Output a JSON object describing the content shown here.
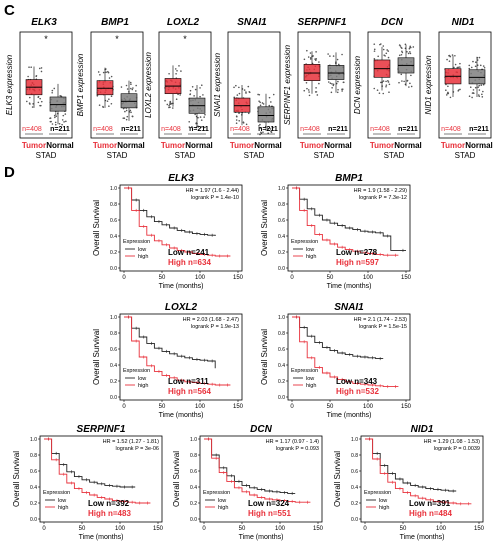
{
  "panels": {
    "c_letter": "C",
    "d_letter": "D"
  },
  "colors": {
    "tumor": "#e8313b",
    "normal": "#7f7f7f",
    "high": "#e8313b",
    "low": "#222222"
  },
  "boxplots": [
    {
      "gene": "ELK3",
      "ylabel": "ELK3 expression",
      "tumor_n": "n=408",
      "normal_n": "n=211",
      "tumor_label": "Tumor",
      "normal_label": "Normal",
      "group_label": "STAD"
    },
    {
      "gene": "BMP1",
      "ylabel": "BMP1 expression",
      "tumor_n": "n=408",
      "normal_n": "n=211",
      "tumor_label": "Tumor",
      "normal_label": "Normal",
      "group_label": "STAD"
    },
    {
      "gene": "LOXL2",
      "ylabel": "LOXL2 expression",
      "tumor_n": "n=408",
      "normal_n": "n=211",
      "tumor_label": "Tumor",
      "normal_label": "Normal",
      "group_label": "STAD"
    },
    {
      "gene": "SNAI1",
      "ylabel": "SNAI1 expression",
      "tumor_n": "n=408",
      "normal_n": "n=211",
      "tumor_label": "Tumor",
      "normal_label": "Normal",
      "group_label": "STAD"
    },
    {
      "gene": "SERPINF1",
      "ylabel": "SERPINF1 expression",
      "tumor_n": "n=408",
      "normal_n": "n=211",
      "tumor_label": "Tumor",
      "normal_label": "Normal",
      "group_label": "STAD"
    },
    {
      "gene": "DCN",
      "ylabel": "DCN expression",
      "tumor_n": "n=408",
      "normal_n": "n=211",
      "tumor_label": "Tumor",
      "normal_label": "Normal",
      "group_label": "STAD"
    },
    {
      "gene": "NID1",
      "ylabel": "NID1 expression",
      "tumor_n": "n=408",
      "normal_n": "n=211",
      "tumor_label": "Tumor",
      "normal_label": "Normal",
      "group_label": "STAD"
    }
  ],
  "chart_data": [
    {
      "type": "box",
      "title": "ELK3",
      "ylabel": "ELK3 expression",
      "categories": [
        "Tumor",
        "Normal"
      ],
      "median": [
        4.3,
        2.7
      ],
      "q1": [
        3.6,
        2.1
      ],
      "q3": [
        5.0,
        3.4
      ],
      "significant": true
    },
    {
      "type": "box",
      "title": "BMP1",
      "ylabel": "BMP1 expression",
      "categories": [
        "Tumor",
        "Normal"
      ],
      "median": [
        4.2,
        3.0
      ],
      "q1": [
        3.6,
        2.4
      ],
      "q3": [
        4.9,
        3.7
      ],
      "significant": true
    },
    {
      "type": "box",
      "title": "LOXL2",
      "ylabel": "LOXL2 expression",
      "categories": [
        "Tumor",
        "Normal"
      ],
      "median": [
        4.4,
        2.6
      ],
      "q1": [
        3.7,
        1.9
      ],
      "q3": [
        5.1,
        3.3
      ],
      "significant": true
    },
    {
      "type": "box",
      "title": "SNAI1",
      "ylabel": "SNAI1 expression",
      "categories": [
        "Tumor",
        "Normal"
      ],
      "median": [
        2.6,
        1.7
      ],
      "q1": [
        2.0,
        1.1
      ],
      "q3": [
        3.3,
        2.5
      ],
      "significant": false
    },
    {
      "type": "box",
      "title": "SERPINF1",
      "ylabel": "SERPINF1 expression",
      "categories": [
        "Tumor",
        "Normal"
      ],
      "median": [
        5.6,
        5.6
      ],
      "q1": [
        4.9,
        5.0
      ],
      "q3": [
        6.4,
        6.3
      ],
      "significant": false
    },
    {
      "type": "box",
      "title": "DCN",
      "ylabel": "DCN expression",
      "categories": [
        "Tumor",
        "Normal"
      ],
      "median": [
        6.0,
        6.3
      ],
      "q1": [
        5.2,
        5.6
      ],
      "q3": [
        6.8,
        7.0
      ],
      "significant": false
    },
    {
      "type": "box",
      "title": "NID1",
      "ylabel": "NID1 expression",
      "categories": [
        "Tumor",
        "Normal"
      ],
      "median": [
        5.3,
        5.2
      ],
      "q1": [
        4.6,
        4.6
      ],
      "q3": [
        6.0,
        5.9
      ],
      "significant": false
    },
    {
      "type": "line",
      "title": "ELK3",
      "hr": "HR = 1.97 (1.6 - 2.44)",
      "logrank": "logrank P = 1.4e-10",
      "xlabel": "Time (months)",
      "ylabel": "Overall Survival",
      "xticks": [
        0,
        50,
        100,
        150
      ],
      "yticks": [
        0.0,
        0.2,
        0.4,
        0.6,
        0.8,
        1.0
      ],
      "legend_title": "Expression",
      "legend_low": "low",
      "legend_high": "high",
      "low_n": "Low n=241",
      "high_n": "High n=634",
      "series": [
        {
          "name": "low",
          "x": [
            0,
            10,
            20,
            30,
            40,
            50,
            60,
            70,
            80,
            90,
            100,
            110,
            120
          ],
          "y": [
            1,
            0.85,
            0.72,
            0.64,
            0.58,
            0.54,
            0.5,
            0.47,
            0.45,
            0.43,
            0.42,
            0.41,
            0.4
          ]
        },
        {
          "name": "high",
          "x": [
            0,
            10,
            20,
            30,
            40,
            50,
            60,
            70,
            80,
            90,
            100,
            110,
            120,
            130,
            140
          ],
          "y": [
            1,
            0.72,
            0.52,
            0.41,
            0.34,
            0.29,
            0.25,
            0.22,
            0.2,
            0.18,
            0.17,
            0.16,
            0.15,
            0.15,
            0.15
          ]
        }
      ]
    },
    {
      "type": "line",
      "title": "BMP1",
      "hr": "HR = 1.9 (1.58 - 2.29)",
      "logrank": "logrank P = 7.3e-12",
      "xlabel": "Time (months)",
      "ylabel": "Overall Survival",
      "xticks": [
        0,
        50,
        100,
        150
      ],
      "yticks": [
        0.0,
        0.2,
        0.4,
        0.6,
        0.8,
        1.0
      ],
      "legend_title": "Expression",
      "legend_low": "low",
      "legend_high": "high",
      "low_n": "Low n=278",
      "high_n": "High n=597",
      "series": [
        {
          "name": "low",
          "x": [
            0,
            10,
            20,
            30,
            40,
            50,
            60,
            70,
            80,
            90,
            100,
            110,
            120,
            130,
            150
          ],
          "y": [
            1,
            0.86,
            0.74,
            0.66,
            0.6,
            0.56,
            0.53,
            0.5,
            0.48,
            0.46,
            0.45,
            0.44,
            0.4,
            0.22,
            0.22
          ]
        },
        {
          "name": "high",
          "x": [
            0,
            10,
            20,
            30,
            40,
            50,
            60,
            70,
            80,
            90,
            100,
            110,
            120,
            130,
            140
          ],
          "y": [
            1,
            0.72,
            0.53,
            0.42,
            0.35,
            0.3,
            0.26,
            0.23,
            0.21,
            0.19,
            0.18,
            0.17,
            0.16,
            0.16,
            0.16
          ]
        }
      ]
    },
    {
      "type": "line",
      "title": "LOXL2",
      "hr": "HR = 2.03 (1.68 - 2.47)",
      "logrank": "logrank P = 1.9e-13",
      "xlabel": "Time (months)",
      "ylabel": "Overall Survival",
      "xticks": [
        0,
        50,
        100,
        150
      ],
      "yticks": [
        0.0,
        0.2,
        0.4,
        0.6,
        0.8,
        1.0
      ],
      "legend_title": "Expression",
      "legend_low": "low",
      "legend_high": "high",
      "low_n": "Low n=311",
      "high_n": "High n=564",
      "series": [
        {
          "name": "low",
          "x": [
            0,
            10,
            20,
            30,
            40,
            50,
            60,
            70,
            80,
            90,
            100,
            110,
            120
          ],
          "y": [
            1,
            0.86,
            0.75,
            0.67,
            0.61,
            0.57,
            0.54,
            0.51,
            0.49,
            0.47,
            0.46,
            0.45,
            0.36
          ]
        },
        {
          "name": "high",
          "x": [
            0,
            10,
            20,
            30,
            40,
            50,
            60,
            70,
            80,
            90,
            100,
            110,
            120,
            130,
            140
          ],
          "y": [
            1,
            0.7,
            0.5,
            0.39,
            0.32,
            0.27,
            0.24,
            0.21,
            0.19,
            0.18,
            0.17,
            0.16,
            0.15,
            0.15,
            0.15
          ]
        }
      ]
    },
    {
      "type": "line",
      "title": "SNAI1",
      "hr": "HR = 2.1 (1.74 - 2.53)",
      "logrank": "logrank P = 1.5e-15",
      "xlabel": "Time (months)",
      "ylabel": "Overall Survival",
      "xticks": [
        0,
        50,
        100,
        150
      ],
      "yticks": [
        0.0,
        0.2,
        0.4,
        0.6,
        0.8,
        1.0
      ],
      "legend_title": "Expression",
      "legend_low": "low",
      "legend_high": "high",
      "low_n": "Low n=343",
      "high_n": "High n=532",
      "series": [
        {
          "name": "low",
          "x": [
            0,
            10,
            20,
            30,
            40,
            50,
            60,
            70,
            80,
            90,
            100,
            110,
            120
          ],
          "y": [
            1,
            0.87,
            0.76,
            0.68,
            0.62,
            0.58,
            0.55,
            0.53,
            0.51,
            0.5,
            0.49,
            0.48,
            0.48
          ]
        },
        {
          "name": "high",
          "x": [
            0,
            10,
            20,
            30,
            40,
            50,
            60,
            70,
            80,
            90,
            100,
            110,
            120,
            130,
            140
          ],
          "y": [
            1,
            0.69,
            0.49,
            0.37,
            0.3,
            0.25,
            0.22,
            0.19,
            0.17,
            0.16,
            0.15,
            0.14,
            0.13,
            0.13,
            0.13
          ]
        }
      ]
    },
    {
      "type": "line",
      "title": "SERPINF1",
      "hr": "HR = 1.52 (1.27 - 1.81)",
      "logrank": "logrank P = 3e-06",
      "xlabel": "Time (months)",
      "ylabel": "Overall Survival",
      "xticks": [
        0,
        50,
        100,
        150
      ],
      "yticks": [
        0.0,
        0.2,
        0.4,
        0.6,
        0.8,
        1.0
      ],
      "legend_title": "Expression",
      "legend_low": "low",
      "legend_high": "high",
      "low_n": "Low n=392",
      "high_n": "High n=483",
      "series": [
        {
          "name": "low",
          "x": [
            0,
            10,
            20,
            30,
            40,
            50,
            60,
            70,
            80,
            90,
            100,
            110,
            120
          ],
          "y": [
            1,
            0.82,
            0.68,
            0.59,
            0.53,
            0.49,
            0.46,
            0.44,
            0.42,
            0.41,
            0.4,
            0.4,
            0.4
          ]
        },
        {
          "name": "high",
          "x": [
            0,
            10,
            20,
            30,
            40,
            50,
            60,
            70,
            80,
            90,
            100,
            110,
            120,
            130,
            140
          ],
          "y": [
            1,
            0.74,
            0.56,
            0.45,
            0.38,
            0.33,
            0.3,
            0.27,
            0.25,
            0.23,
            0.22,
            0.21,
            0.2,
            0.2,
            0.2
          ]
        }
      ]
    },
    {
      "type": "line",
      "title": "DCN",
      "hr": "HR = 1.17 (0.97 - 1.4)",
      "logrank": "logrank P = 0.093",
      "xlabel": "Time (months)",
      "ylabel": "Overall Survival",
      "xticks": [
        0,
        50,
        100,
        150
      ],
      "yticks": [
        0.0,
        0.2,
        0.4,
        0.6,
        0.8,
        1.0
      ],
      "legend_title": "Expression",
      "legend_low": "low",
      "legend_high": "high",
      "low_n": "Low n=324",
      "high_n": "High n=551",
      "series": [
        {
          "name": "low",
          "x": [
            0,
            10,
            20,
            30,
            40,
            50,
            60,
            70,
            80,
            90,
            100,
            110,
            120
          ],
          "y": [
            1,
            0.8,
            0.64,
            0.54,
            0.47,
            0.42,
            0.39,
            0.37,
            0.35,
            0.34,
            0.33,
            0.32,
            0.32
          ]
        },
        {
          "name": "high",
          "x": [
            0,
            10,
            20,
            30,
            40,
            50,
            60,
            70,
            80,
            90,
            100,
            110,
            120,
            130,
            140
          ],
          "y": [
            1,
            0.76,
            0.58,
            0.47,
            0.39,
            0.34,
            0.3,
            0.27,
            0.25,
            0.24,
            0.23,
            0.22,
            0.21,
            0.21,
            0.21
          ]
        }
      ]
    },
    {
      "type": "line",
      "title": "NID1",
      "hr": "HR = 1.29 (1.08 - 1.53)",
      "logrank": "logrank P = 0.0039",
      "xlabel": "Time (months)",
      "ylabel": "Overall Survival",
      "xticks": [
        0,
        50,
        100,
        150
      ],
      "yticks": [
        0.0,
        0.2,
        0.4,
        0.6,
        0.8,
        1.0
      ],
      "legend_title": "Expression",
      "legend_low": "low",
      "legend_high": "high",
      "low_n": "Low n=391",
      "high_n": "High n=484",
      "series": [
        {
          "name": "low",
          "x": [
            0,
            10,
            20,
            30,
            40,
            50,
            60,
            70,
            80,
            90,
            100,
            110,
            120
          ],
          "y": [
            1,
            0.82,
            0.67,
            0.57,
            0.5,
            0.45,
            0.42,
            0.4,
            0.38,
            0.37,
            0.36,
            0.35,
            0.35
          ]
        },
        {
          "name": "high",
          "x": [
            0,
            10,
            20,
            30,
            40,
            50,
            60,
            70,
            80,
            90,
            100,
            110,
            120,
            130,
            140
          ],
          "y": [
            1,
            0.75,
            0.57,
            0.46,
            0.38,
            0.33,
            0.29,
            0.26,
            0.24,
            0.22,
            0.21,
            0.2,
            0.19,
            0.19,
            0.19
          ]
        }
      ]
    }
  ]
}
